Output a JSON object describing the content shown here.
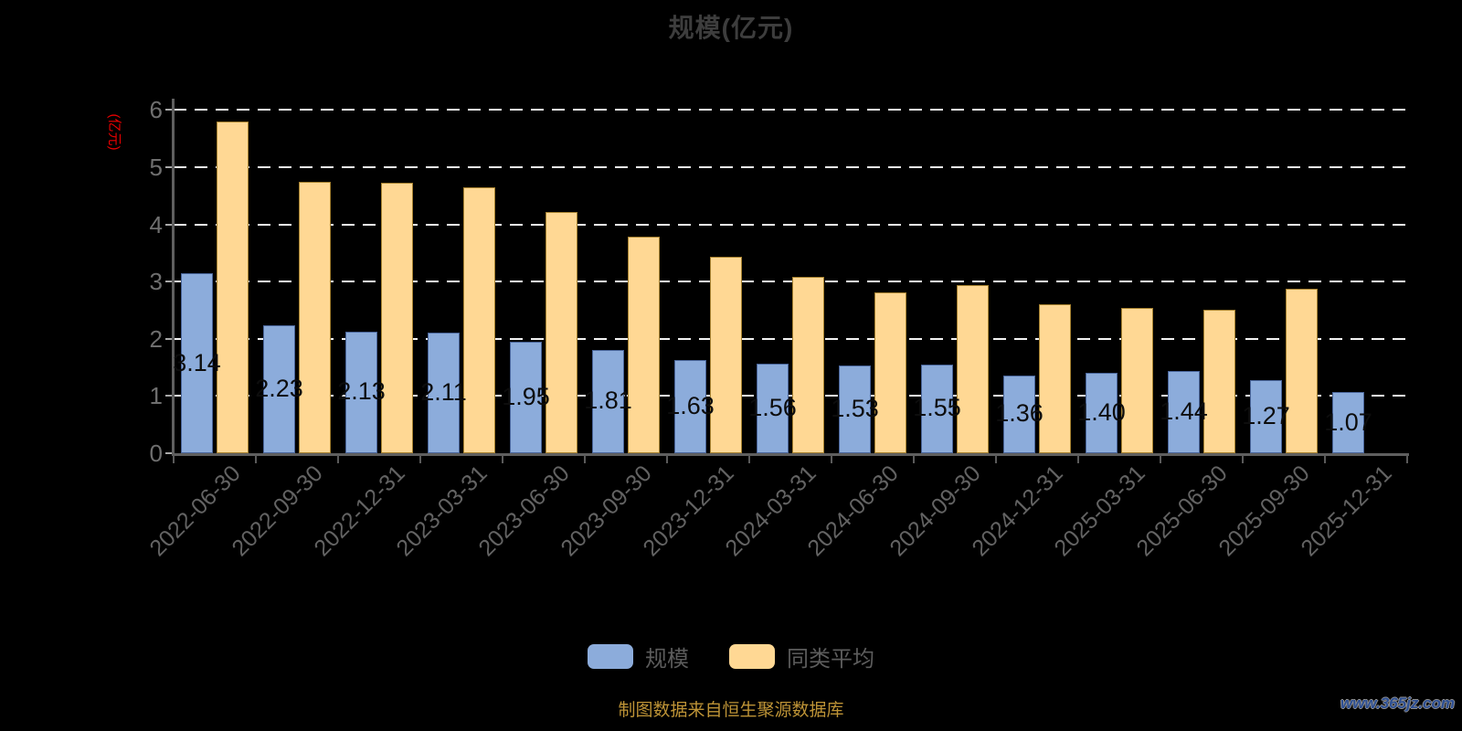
{
  "title": "规模(亿元)",
  "y_axis_name": "(亿元)",
  "source_note": "制图数据来自恒生聚源数据库",
  "watermark": "www.365jz.com",
  "colors": {
    "background": "#000000",
    "scale_bar": "#8CACDB",
    "average_bar": "#FFD894",
    "axis_name_red": "#EE0000",
    "source_gold": "#BD9336",
    "watermark_blue": "#2D4F93"
  },
  "legend": [
    {
      "label": "规模",
      "color": "#8CACDB"
    },
    {
      "label": "同类平均",
      "color": "#FFD894"
    }
  ],
  "chart_data": {
    "type": "bar",
    "title": "规模(亿元)",
    "ylabel": "(亿元)",
    "ylim": [
      0,
      6
    ],
    "yticks": [
      0,
      1,
      2,
      3,
      4,
      5,
      6
    ],
    "grid": "white-dashed-horizontal",
    "legend_position": "bottom",
    "categories": [
      "2022-06-30",
      "2022-09-30",
      "2022-12-31",
      "2023-03-31",
      "2023-06-30",
      "2023-09-30",
      "2023-12-31",
      "2024-03-31",
      "2024-06-30",
      "2024-09-30",
      "2024-12-31",
      "2025-03-31",
      "2025-06-30",
      "2025-09-30",
      "2025-12-31"
    ],
    "series": [
      {
        "name": "规模",
        "color": "#8CACDB",
        "border_color": "#49659A",
        "values": [
          3.14,
          2.23,
          2.13,
          2.11,
          1.95,
          1.81,
          1.63,
          1.56,
          1.53,
          1.55,
          1.36,
          1.4,
          1.44,
          1.27,
          1.07
        ],
        "labels": [
          "3.14",
          "2.23",
          "2.13",
          "2.11",
          "1.95",
          "1.81",
          "1.63",
          "1.56",
          "1.53",
          "1.55",
          "1.36",
          "1.40",
          "1.44",
          "1.27",
          "1.07"
        ]
      },
      {
        "name": "同类平均",
        "color": "#FFD894",
        "border_color": "#A6812F",
        "values": [
          5.8,
          4.75,
          4.73,
          4.65,
          4.21,
          3.78,
          3.44,
          3.08,
          2.81,
          2.94,
          2.61,
          2.54,
          2.51,
          2.88,
          null
        ],
        "labels": []
      }
    ]
  }
}
